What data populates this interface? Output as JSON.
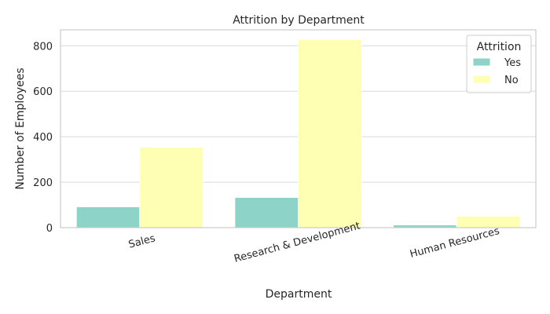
{
  "chart_data": {
    "type": "bar",
    "title": "Attrition by Department",
    "xlabel": "Department",
    "ylabel": "Number of Employees",
    "categories": [
      "Sales",
      "Research & Development",
      "Human Resources"
    ],
    "series": [
      {
        "name": "Yes",
        "values": [
          92,
          133,
          12
        ],
        "color": "#8dd3c7"
      },
      {
        "name": "No",
        "values": [
          354,
          828,
          51
        ],
        "color": "#ffffb3"
      }
    ],
    "ylim": [
      0,
      870
    ],
    "yticks": [
      0,
      200,
      400,
      600,
      800
    ],
    "grid": true,
    "legend": {
      "title": "Attrition",
      "placement": "top-right"
    }
  }
}
